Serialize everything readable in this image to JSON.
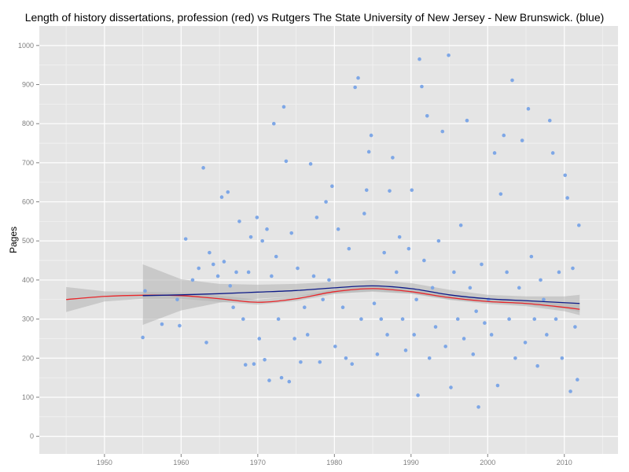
{
  "chart_data": {
    "type": "scatter",
    "title": "Length of history dissertations, profession (red) vs Rutgers The State University of New Jersey - New Brunswick. (blue)",
    "xlabel": "",
    "ylabel": "Pages",
    "xlim": [
      1941.5,
      2017
    ],
    "ylim": [
      -45,
      1050
    ],
    "x_ticks": [
      1950,
      1960,
      1970,
      1980,
      1990,
      2000,
      2010
    ],
    "y_ticks": [
      0,
      100,
      200,
      300,
      400,
      500,
      600,
      700,
      800,
      900,
      1000
    ],
    "grid": true,
    "colors": {
      "panel": "#e5e5e5",
      "grid_major": "#ffffff",
      "grid_minor": "#f2f2f2",
      "points": "#7ea7e6",
      "profession_line": "#e8262a",
      "rutgers_line": "#0d1a87",
      "ribbon": "#b3b3b3"
    },
    "series": [
      {
        "name": "profession",
        "kind": "smooth",
        "x": [
          1945,
          1950,
          1955,
          1960,
          1965,
          1970,
          1975,
          1980,
          1985,
          1990,
          1995,
          2000,
          2005,
          2010,
          2012
        ],
        "y": [
          350,
          358,
          361,
          360,
          352,
          343,
          352,
          370,
          378,
          370,
          355,
          345,
          340,
          330,
          325
        ],
        "band_lower": [
          318,
          345,
          352,
          352,
          344,
          337,
          346,
          364,
          372,
          365,
          349,
          339,
          333,
          320,
          310
        ],
        "band_upper": [
          382,
          371,
          370,
          368,
          360,
          350,
          358,
          376,
          384,
          376,
          361,
          351,
          347,
          340,
          340
        ]
      },
      {
        "name": "Rutgers The State University of New Jersey - New Brunswick.",
        "kind": "smooth",
        "x": [
          1955,
          1960,
          1965,
          1970,
          1975,
          1980,
          1985,
          1990,
          1995,
          2000,
          2005,
          2010,
          2012
        ],
        "y": [
          360,
          362,
          365,
          369,
          373,
          380,
          385,
          378,
          362,
          352,
          347,
          342,
          340
        ],
        "band_lower": [
          285,
          322,
          342,
          352,
          358,
          366,
          370,
          365,
          350,
          343,
          336,
          327,
          318
        ],
        "band_upper": [
          440,
          402,
          390,
          388,
          390,
          395,
          400,
          392,
          375,
          362,
          358,
          358,
          362
        ]
      },
      {
        "name": "dissertations",
        "kind": "points",
        "points": [
          [
            1955,
            253
          ],
          [
            1955.3,
            372
          ],
          [
            1957.5,
            287
          ],
          [
            1959.5,
            350
          ],
          [
            1959.8,
            283
          ],
          [
            1960.6,
            505
          ],
          [
            1961.5,
            400
          ],
          [
            1962.3,
            430
          ],
          [
            1962.9,
            687
          ],
          [
            1963.3,
            240
          ],
          [
            1963.7,
            470
          ],
          [
            1964.2,
            440
          ],
          [
            1964.8,
            410
          ],
          [
            1965.3,
            612
          ],
          [
            1965.6,
            447
          ],
          [
            1966.1,
            625
          ],
          [
            1966.4,
            385
          ],
          [
            1966.8,
            330
          ],
          [
            1967.2,
            420
          ],
          [
            1967.6,
            550
          ],
          [
            1968.1,
            300
          ],
          [
            1968.4,
            183
          ],
          [
            1968.8,
            420
          ],
          [
            1969.1,
            510
          ],
          [
            1969.5,
            185
          ],
          [
            1969.9,
            560
          ],
          [
            1970.2,
            250
          ],
          [
            1970.6,
            500
          ],
          [
            1970.9,
            196
          ],
          [
            1971.2,
            530
          ],
          [
            1971.5,
            143
          ],
          [
            1971.8,
            410
          ],
          [
            1972.1,
            800
          ],
          [
            1972.4,
            460
          ],
          [
            1972.7,
            300
          ],
          [
            1973.1,
            150
          ],
          [
            1973.4,
            843
          ],
          [
            1973.7,
            704
          ],
          [
            1974.1,
            140
          ],
          [
            1974.4,
            520
          ],
          [
            1974.8,
            250
          ],
          [
            1975.2,
            430
          ],
          [
            1975.6,
            190
          ],
          [
            1976.1,
            330
          ],
          [
            1976.5,
            260
          ],
          [
            1976.9,
            697
          ],
          [
            1977.3,
            410
          ],
          [
            1977.7,
            560
          ],
          [
            1978.1,
            190
          ],
          [
            1978.5,
            350
          ],
          [
            1978.9,
            600
          ],
          [
            1979.3,
            400
          ],
          [
            1979.7,
            640
          ],
          [
            1980.1,
            230
          ],
          [
            1980.5,
            530
          ],
          [
            1981.1,
            330
          ],
          [
            1981.5,
            200
          ],
          [
            1981.9,
            480
          ],
          [
            1982.3,
            185
          ],
          [
            1982.7,
            893
          ],
          [
            1983.1,
            917
          ],
          [
            1983.5,
            300
          ],
          [
            1983.9,
            570
          ],
          [
            1984.2,
            630
          ],
          [
            1984.5,
            728
          ],
          [
            1984.8,
            770
          ],
          [
            1985.2,
            340
          ],
          [
            1985.6,
            210
          ],
          [
            1986.1,
            300
          ],
          [
            1986.5,
            470
          ],
          [
            1986.9,
            260
          ],
          [
            1987.2,
            628
          ],
          [
            1987.6,
            713
          ],
          [
            1988.1,
            420
          ],
          [
            1988.5,
            510
          ],
          [
            1988.9,
            300
          ],
          [
            1989.3,
            220
          ],
          [
            1989.7,
            480
          ],
          [
            1990.1,
            630
          ],
          [
            1990.4,
            260
          ],
          [
            1990.7,
            350
          ],
          [
            1990.9,
            105
          ],
          [
            1991.1,
            965
          ],
          [
            1991.4,
            895
          ],
          [
            1991.7,
            450
          ],
          [
            1992.1,
            820
          ],
          [
            1992.4,
            200
          ],
          [
            1992.8,
            380
          ],
          [
            1993.2,
            280
          ],
          [
            1993.6,
            500
          ],
          [
            1994.1,
            780
          ],
          [
            1994.5,
            230
          ],
          [
            1994.9,
            975
          ],
          [
            1995.2,
            125
          ],
          [
            1995.6,
            420
          ],
          [
            1996.1,
            300
          ],
          [
            1996.5,
            540
          ],
          [
            1996.9,
            250
          ],
          [
            1997.3,
            808
          ],
          [
            1997.7,
            380
          ],
          [
            1998.1,
            210
          ],
          [
            1998.5,
            320
          ],
          [
            1998.8,
            75
          ],
          [
            1999.2,
            440
          ],
          [
            1999.6,
            290
          ],
          [
            2000.1,
            350
          ],
          [
            2000.5,
            260
          ],
          [
            2000.9,
            725
          ],
          [
            2001.3,
            130
          ],
          [
            2001.7,
            620
          ],
          [
            2002.1,
            770
          ],
          [
            2002.5,
            420
          ],
          [
            2002.8,
            300
          ],
          [
            2003.2,
            911
          ],
          [
            2003.6,
            200
          ],
          [
            2004.1,
            380
          ],
          [
            2004.5,
            757
          ],
          [
            2004.9,
            240
          ],
          [
            2005.3,
            838
          ],
          [
            2005.7,
            460
          ],
          [
            2006.1,
            300
          ],
          [
            2006.5,
            180
          ],
          [
            2006.9,
            400
          ],
          [
            2007.3,
            350
          ],
          [
            2007.7,
            260
          ],
          [
            2008.1,
            808
          ],
          [
            2008.5,
            725
          ],
          [
            2008.9,
            300
          ],
          [
            2009.3,
            420
          ],
          [
            2009.7,
            200
          ],
          [
            2010.1,
            668
          ],
          [
            2010.4,
            610
          ],
          [
            2010.8,
            115
          ],
          [
            2011.1,
            430
          ],
          [
            2011.4,
            280
          ],
          [
            2011.7,
            145
          ],
          [
            2011.9,
            540
          ]
        ]
      }
    ]
  }
}
